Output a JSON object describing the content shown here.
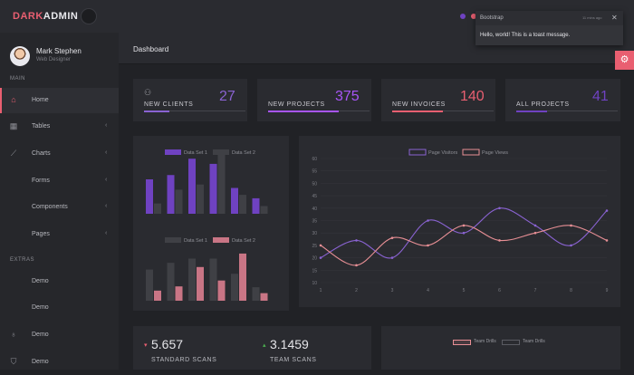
{
  "brand": {
    "part1": "DARK",
    "part2": "ADMIN"
  },
  "user": {
    "name": "Mark Stephen",
    "role": "Web Designer"
  },
  "sidebar": {
    "main_label": "MAIN",
    "extras_label": "EXTRAS",
    "items": [
      {
        "label": "Home",
        "icon": "home-icon",
        "active": true
      },
      {
        "label": "Tables",
        "icon": "grid-icon",
        "chevron": true
      },
      {
        "label": "Charts",
        "icon": "chart-icon",
        "chevron": true
      },
      {
        "label": "Forms",
        "icon": "",
        "chevron": true
      },
      {
        "label": "Components",
        "icon": "",
        "chevron": true
      },
      {
        "label": "Pages",
        "icon": "",
        "chevron": true
      }
    ],
    "extras": [
      {
        "label": "Demo",
        "icon": ""
      },
      {
        "label": "Demo",
        "icon": ""
      },
      {
        "label": "Demo",
        "icon": "award-icon"
      },
      {
        "label": "Demo",
        "icon": "shield-icon"
      }
    ]
  },
  "header": {
    "title": "Dashboard"
  },
  "stats": [
    {
      "label": "NEW CLIENTS",
      "value": "27",
      "color": "#8a63d2",
      "progress": 0.25,
      "icon": "user-icon"
    },
    {
      "label": "NEW PROJECTS",
      "value": "375",
      "color": "#a855f7",
      "progress": 0.7
    },
    {
      "label": "NEW INVOICES",
      "value": "140",
      "color": "#e95f71",
      "progress": 0.5
    },
    {
      "label": "ALL PROJECTS",
      "value": "41",
      "color": "#6f42c1",
      "progress": 0.3
    }
  ],
  "toast": {
    "title": "Bootstrap",
    "time": "11 mins ago",
    "message": "Hello, world! This is a toast message.",
    "close": "✕"
  },
  "scans": [
    {
      "value": "5.657",
      "label": "STANDARD SCANS",
      "trend": "down",
      "arrow": "▾",
      "color": "#e95f71"
    },
    {
      "value": "3.1459",
      "label": "TEAM SCANS",
      "trend": "up",
      "arrow": "▴",
      "color": "#4caf50"
    }
  ],
  "bottom_legend": {
    "series1": "Team Drills",
    "series2": "Team Drills"
  },
  "chart_data": [
    {
      "type": "bar",
      "legend": [
        "Data Set 1",
        "Data Set 2"
      ],
      "colors": [
        "#6f42c1",
        "#3f4045"
      ],
      "series": [
        {
          "name": "Data Set 1",
          "values": [
            40,
            45,
            64,
            58,
            30,
            18
          ]
        },
        {
          "name": "Data Set 2",
          "values": [
            12,
            28,
            34,
            70,
            22,
            9
          ]
        }
      ]
    },
    {
      "type": "bar",
      "legend": [
        "Data Set 1",
        "Data Set 2"
      ],
      "colors": [
        "#3f4045",
        "#c97585"
      ],
      "series": [
        {
          "name": "Data Set 1",
          "values": [
            37,
            45,
            50,
            50,
            32,
            16
          ]
        },
        {
          "name": "Data Set 2",
          "values": [
            12,
            17,
            40,
            24,
            56,
            9
          ]
        }
      ]
    },
    {
      "type": "line",
      "legend": [
        "Page Visitors",
        "Page Views"
      ],
      "colors": [
        "#8a63d2",
        "#e88f95"
      ],
      "x": [
        1,
        2,
        3,
        4,
        5,
        6,
        7,
        8,
        9
      ],
      "ylim": [
        10,
        60
      ],
      "yticks": [
        10,
        15,
        20,
        25,
        30,
        35,
        40,
        45,
        50,
        55,
        60
      ],
      "series": [
        {
          "name": "Page Visitors",
          "values": [
            20,
            27,
            20,
            35,
            30,
            40,
            33,
            25,
            39
          ]
        },
        {
          "name": "Page Views",
          "values": [
            25,
            17,
            28,
            25,
            33,
            27,
            30,
            33,
            27
          ]
        }
      ]
    }
  ]
}
